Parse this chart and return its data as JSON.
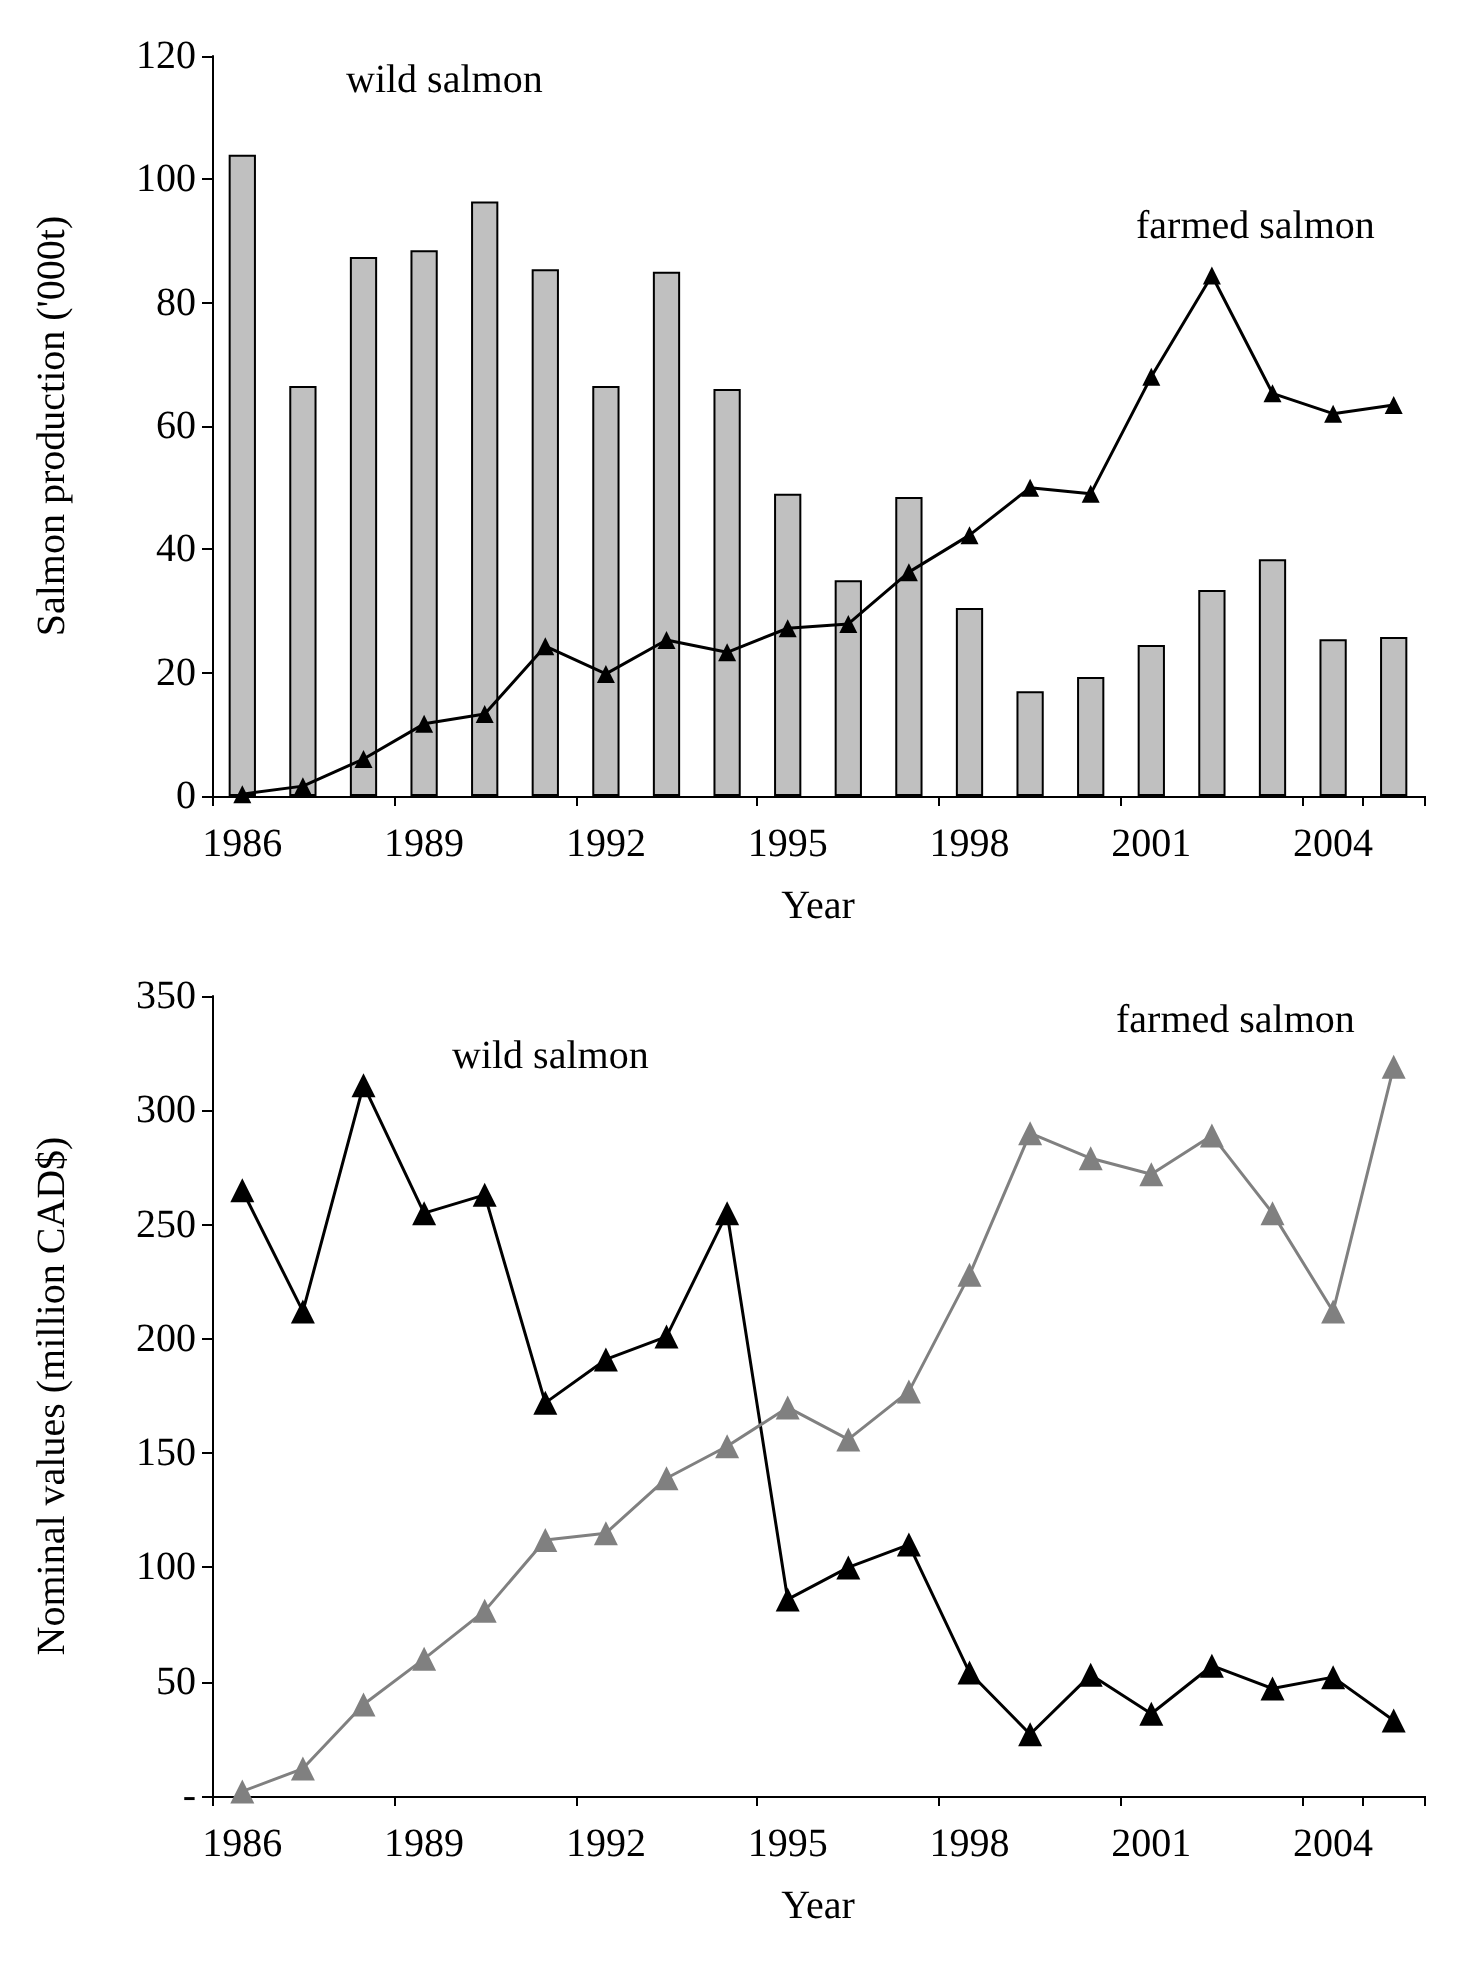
{
  "chart_data": [
    {
      "type": "bar",
      "xlabel": "Year",
      "ylabel": "Salmon production ('000t)",
      "categories": [
        "1986",
        null,
        null,
        "1989",
        null,
        null,
        "1992",
        null,
        null,
        "1995",
        null,
        null,
        "1998",
        null,
        null,
        "2001",
        null,
        null,
        "2004",
        null
      ],
      "ylim": [
        0,
        120
      ],
      "yticks": [
        0,
        20,
        40,
        60,
        80,
        100,
        120
      ],
      "grid": false,
      "legend": false,
      "marker": "triangle",
      "series": [
        {
          "name": "wild salmon",
          "color": "#c0c0c0",
          "values": [
            104,
            66.5,
            87.4,
            88.5,
            96.4,
            85.4,
            66.5,
            85,
            66,
            49,
            35,
            48.5,
            30.5,
            17,
            19.3,
            24.5,
            33.4,
            38.4,
            25.4,
            25.8
          ]
        },
        {
          "name": "farmed salmon",
          "type": "line",
          "color": "#000000",
          "values": [
            0.3,
            1.6,
            6,
            11.7,
            13.3,
            24.3,
            19.8,
            25.3,
            23.3,
            27.2,
            27.9,
            36.3,
            42.3,
            50,
            49,
            68,
            84.4,
            65.3,
            62,
            63.4
          ]
        }
      ]
    },
    {
      "type": "line",
      "xlabel": "Year",
      "ylabel": "Nominal values (million CAD$)",
      "categories": [
        "1986",
        null,
        null,
        "1989",
        null,
        null,
        "1992",
        null,
        null,
        "1995",
        null,
        null,
        "1998",
        null,
        null,
        "2001",
        null,
        null,
        "2004",
        null
      ],
      "ylim": [
        0,
        350
      ],
      "yticks": [
        {
          "value": 0,
          "label": "-"
        },
        50,
        100,
        150,
        200,
        250,
        300,
        350
      ],
      "grid": false,
      "legend": false,
      "marker": "triangle",
      "series": [
        {
          "name": "wild salmon",
          "color": "#000000",
          "values": [
            265,
            212,
            311,
            255,
            263,
            172,
            191,
            201,
            255,
            86,
            100,
            110,
            54,
            27,
            53,
            36,
            57,
            47,
            52,
            33
          ]
        },
        {
          "name": "farmed salmon",
          "color": "#808080",
          "values": [
            2,
            12,
            40,
            60,
            81,
            112,
            115,
            139,
            153,
            170,
            156,
            177,
            228,
            290,
            279,
            272,
            289,
            255,
            212,
            319
          ]
        }
      ]
    }
  ]
}
